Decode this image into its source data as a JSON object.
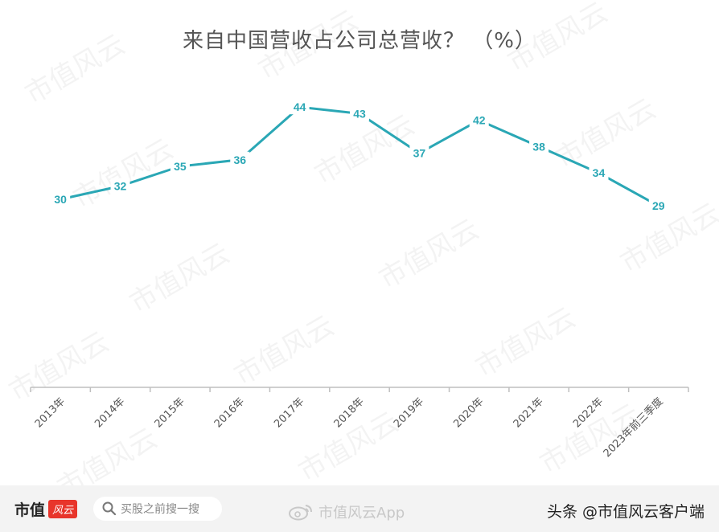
{
  "watermark_text": "市值风云",
  "chart_data": {
    "type": "line",
    "title": "来自中国营收占公司总营收？ （%）",
    "categories": [
      "2013年",
      "2014年",
      "2015年",
      "2016年",
      "2017年",
      "2018年",
      "2019年",
      "2020年",
      "2021年",
      "2022年",
      "2023年前三季度"
    ],
    "series": [
      {
        "values": [
          30,
          32,
          35,
          36,
          44,
          43,
          37,
          42,
          38,
          34,
          29
        ]
      }
    ],
    "ylim": [
      0,
      50
    ],
    "grid": false,
    "legend": "none",
    "data_labels": true,
    "colors": {
      "line": "#2aa7b5",
      "axis": "#bfbfbf"
    }
  },
  "footer": {
    "brand": "市值",
    "brand_badge": "风云",
    "search_placeholder": "买股之前搜一搜",
    "search_icon": "search-icon",
    "weibo_icon": "weibo-icon",
    "weibo_handle": "市值风云App",
    "source_text": "头条 @市值风云客户端"
  }
}
